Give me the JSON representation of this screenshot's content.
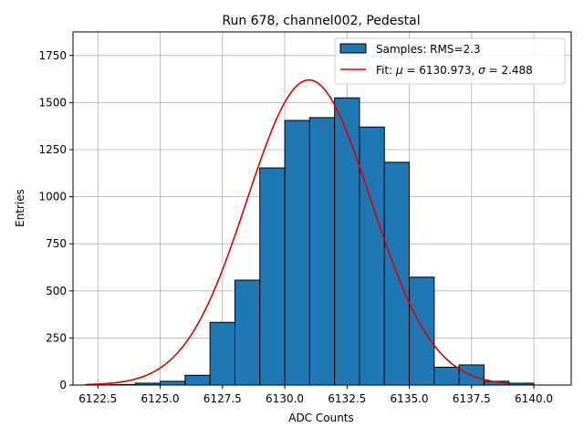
{
  "chart_data": {
    "type": "bar",
    "title": "Run 678, channel002, Pedestal",
    "xlabel": "ADC Counts",
    "ylabel": "Entries",
    "xlim": [
      6121.5,
      6141.5
    ],
    "ylim": [
      0,
      1875
    ],
    "grid": true,
    "x_ticks": [
      6122.5,
      6125.0,
      6127.5,
      6130.0,
      6132.5,
      6135.0,
      6137.5,
      6140.0
    ],
    "x_tick_labels": [
      "6122.5",
      "6125.0",
      "6127.5",
      "6130.0",
      "6132.5",
      "6135.0",
      "6137.5",
      "6140.0"
    ],
    "y_ticks": [
      0,
      250,
      500,
      750,
      1000,
      1250,
      1500,
      1750
    ],
    "y_tick_labels": [
      "0",
      "250",
      "500",
      "750",
      "1000",
      "1250",
      "1500",
      "1750"
    ],
    "bar_color": "#1f77b4",
    "fit_color": "#e00000",
    "bins": [
      {
        "left": 6122,
        "right": 6123,
        "count": 1
      },
      {
        "left": 6123,
        "right": 6124,
        "count": 3
      },
      {
        "left": 6124,
        "right": 6125,
        "count": 10
      },
      {
        "left": 6125,
        "right": 6126,
        "count": 20
      },
      {
        "left": 6126,
        "right": 6127,
        "count": 52
      },
      {
        "left": 6127,
        "right": 6128,
        "count": 333
      },
      {
        "left": 6128,
        "right": 6129,
        "count": 557
      },
      {
        "left": 6129,
        "right": 6130,
        "count": 1153
      },
      {
        "left": 6130,
        "right": 6131,
        "count": 1405
      },
      {
        "left": 6131,
        "right": 6132,
        "count": 1420
      },
      {
        "left": 6132,
        "right": 6133,
        "count": 1525
      },
      {
        "left": 6133,
        "right": 6134,
        "count": 1370
      },
      {
        "left": 6134,
        "right": 6135,
        "count": 1183
      },
      {
        "left": 6135,
        "right": 6136,
        "count": 573
      },
      {
        "left": 6136,
        "right": 6137,
        "count": 95
      },
      {
        "left": 6137,
        "right": 6138,
        "count": 107
      },
      {
        "left": 6138,
        "right": 6139,
        "count": 20
      },
      {
        "left": 6139,
        "right": 6140,
        "count": 10
      }
    ],
    "fit": {
      "mu": 6130.973,
      "sigma": 2.488,
      "peak": 1620,
      "x_range": [
        6122,
        6139
      ]
    },
    "legend": {
      "position": "top-right",
      "samples_label": "Samples: RMS=2.3",
      "fit_label_prefix": "Fit: ",
      "mu_symbol": "μ",
      "mu_value": " = 6130.973, ",
      "sigma_symbol": "σ",
      "sigma_value": " = 2.488"
    }
  }
}
